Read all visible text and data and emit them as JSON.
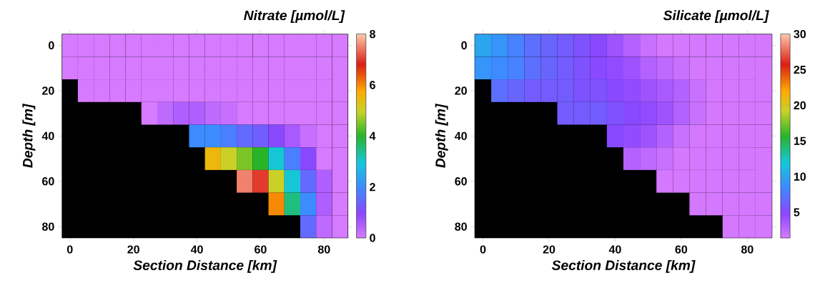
{
  "chart_data": [
    {
      "type": "heatmap",
      "title": "Nitrate [µmol/L]",
      "xlabel": "Section Distance [km]",
      "ylabel": "Depth [m]",
      "categories": [
        "0",
        null,
        null,
        null,
        "20",
        null,
        null,
        null,
        "40",
        null,
        null,
        null,
        "60",
        null,
        null,
        null,
        "80",
        null
      ],
      "y_categories": [
        "0",
        null,
        "20",
        null,
        "40",
        null,
        "60",
        null,
        "80"
      ],
      "cells": [
        [
          0,
          0,
          0,
          0,
          0,
          0,
          0,
          0,
          0,
          0,
          0,
          0,
          0,
          0,
          0,
          0,
          0,
          0
        ],
        [
          0,
          0,
          0,
          0,
          0,
          0,
          0,
          0,
          0,
          0,
          0,
          0,
          0,
          0,
          0,
          0,
          0,
          0
        ],
        [
          null,
          0,
          0,
          0,
          0,
          0,
          0,
          0,
          0,
          0,
          0,
          0,
          0,
          0,
          0,
          0,
          0,
          0
        ],
        [
          null,
          null,
          null,
          null,
          null,
          0,
          0.3,
          0.5,
          0.5,
          0.3,
          0.2,
          0,
          0,
          0,
          0,
          0,
          0,
          0
        ],
        [
          null,
          null,
          null,
          null,
          null,
          null,
          null,
          null,
          2,
          2,
          1.8,
          1.5,
          1.3,
          1,
          0.6,
          0.2,
          0,
          0
        ],
        [
          null,
          null,
          null,
          null,
          null,
          null,
          null,
          null,
          null,
          5.5,
          5,
          4.5,
          4,
          3,
          1.8,
          1,
          0,
          0
        ],
        [
          null,
          null,
          null,
          null,
          null,
          null,
          null,
          null,
          null,
          null,
          null,
          7.5,
          7,
          5,
          3,
          1.5,
          0.5,
          0
        ],
        [
          null,
          null,
          null,
          null,
          null,
          null,
          null,
          null,
          null,
          null,
          null,
          null,
          null,
          6,
          3.5,
          2,
          0.5,
          0
        ],
        [
          null,
          null,
          null,
          null,
          null,
          null,
          null,
          null,
          null,
          null,
          null,
          null,
          null,
          null,
          null,
          1.5,
          0.3,
          0
        ]
      ],
      "clim": [
        0,
        8
      ],
      "cticks": [
        0,
        2,
        4,
        6,
        8
      ]
    },
    {
      "type": "heatmap",
      "title": "Silicate [µmol/L]",
      "xlabel": "Section Distance [km]",
      "ylabel": "Depth [m]",
      "categories": [
        "0",
        null,
        null,
        null,
        "20",
        null,
        null,
        null,
        "40",
        null,
        null,
        null,
        "60",
        null,
        null,
        null,
        "80",
        null
      ],
      "y_categories": [
        "0",
        null,
        "20",
        null,
        "40",
        null,
        "60",
        null,
        "80"
      ],
      "cells": [
        [
          10,
          9,
          8,
          7,
          6.5,
          6,
          5.5,
          5,
          4,
          3,
          2,
          1.5,
          1.5,
          1.5,
          1.5,
          1.5,
          1.5,
          1.5
        ],
        [
          9,
          8.5,
          8,
          7,
          6.5,
          6,
          5.5,
          5,
          4.5,
          4,
          3,
          2.5,
          2,
          1.5,
          1.5,
          1.5,
          1.5,
          1.5
        ],
        [
          null,
          7,
          6.5,
          6,
          6,
          6,
          5.5,
          5.5,
          5,
          4.5,
          4,
          3.5,
          3,
          2,
          1.5,
          1.5,
          1.5,
          1.5
        ],
        [
          null,
          null,
          null,
          null,
          null,
          6,
          6,
          6,
          5.5,
          5,
          4.5,
          4,
          3,
          2,
          1.5,
          1.5,
          1.5,
          1.5
        ],
        [
          null,
          null,
          null,
          null,
          null,
          null,
          null,
          null,
          5,
          4.5,
          4,
          3,
          2,
          1.5,
          1.5,
          1.5,
          1.5,
          1.5
        ],
        [
          null,
          null,
          null,
          null,
          null,
          null,
          null,
          null,
          null,
          3,
          2.5,
          2,
          1.5,
          1.5,
          1.5,
          1.5,
          1.5,
          1.5
        ],
        [
          null,
          null,
          null,
          null,
          null,
          null,
          null,
          null,
          null,
          null,
          null,
          1.5,
          1.5,
          1.5,
          1.5,
          1.5,
          1.5,
          1.5
        ],
        [
          null,
          null,
          null,
          null,
          null,
          null,
          null,
          null,
          null,
          null,
          null,
          null,
          null,
          1.5,
          1.5,
          1.5,
          1.5,
          1.5
        ],
        [
          null,
          null,
          null,
          null,
          null,
          null,
          null,
          null,
          null,
          null,
          null,
          null,
          null,
          null,
          null,
          1.5,
          1.5,
          1.5
        ]
      ],
      "clim": [
        1.4,
        30
      ],
      "cticks": [
        5,
        10,
        15,
        20,
        25,
        30
      ]
    }
  ]
}
